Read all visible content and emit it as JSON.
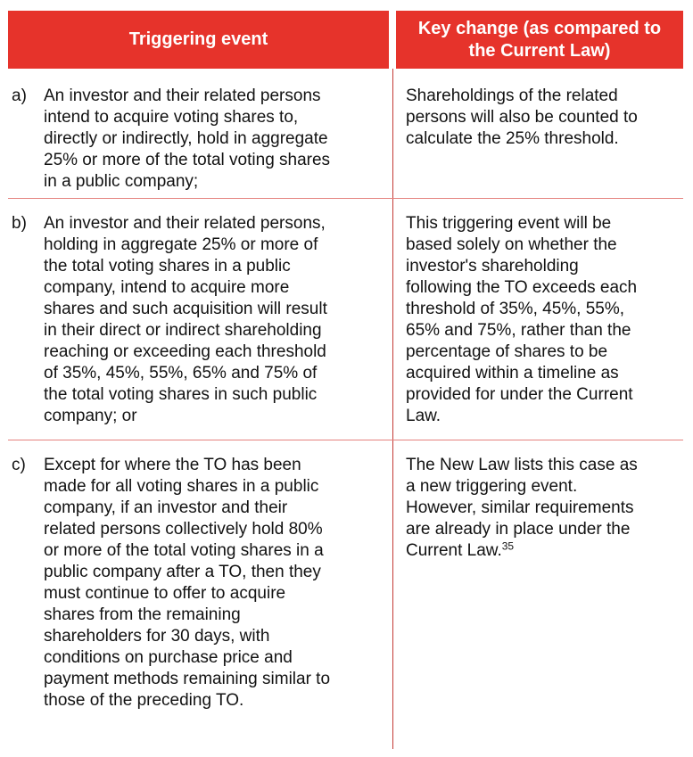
{
  "colors": {
    "header_bg": "#e6332b",
    "header_text": "#ffffff",
    "vertical_divider": "#c43a35",
    "horizontal_divider": "#e5827f",
    "body_text": "#121212"
  },
  "table": {
    "headers": [
      {
        "label": "Triggering event"
      },
      {
        "label": "Key change (as compared to\nthe Current Law)"
      }
    ],
    "rows": [
      {
        "marker": "a)",
        "event": "An investor and their related persons\nintend to acquire voting shares to,\ndirectly or indirectly, hold in aggregate\n25% or more of the total voting shares\nin a public company;",
        "change": "Shareholdings of the related\npersons will also be counted to\ncalculate the 25% threshold.",
        "footnote": ""
      },
      {
        "marker": "b)",
        "event": "An investor and their related persons,\nholding in aggregate 25% or more of\nthe total voting shares in a public\ncompany, intend to acquire more\nshares and such acquisition will result\nin their direct or indirect shareholding\nreaching or exceeding each threshold\nof 35%, 45%, 55%, 65% and 75% of\nthe total voting shares in such public\ncompany; or",
        "change": "This triggering event will be\nbased solely on whether the\ninvestor's shareholding\nfollowing the TO exceeds each\nthreshold of 35%, 45%, 55%,\n65% and 75%, rather than the\npercentage of shares to be\nacquired within a timeline as\nprovided for under the Current\nLaw.",
        "footnote": ""
      },
      {
        "marker": "c)",
        "event": "Except for where the TO has been\nmade for all voting shares in a public\ncompany, if an investor and their\nrelated persons collectively hold 80%\nor more of the total voting shares in a\npublic company after a TO, then they\nmust continue to offer to acquire\nshares from the remaining\nshareholders for 30 days, with\nconditions on purchase price and\npayment methods remaining similar to\nthose of the preceding TO.",
        "change": "The New Law lists this case as\na new triggering event.\nHowever, similar requirements\nare already in place under the\nCurrent Law.",
        "footnote": "35"
      }
    ]
  }
}
